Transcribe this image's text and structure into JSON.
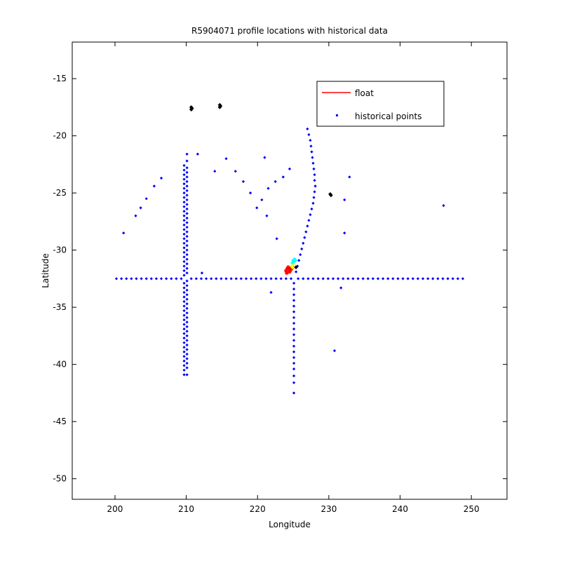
{
  "chart_data": {
    "type": "scatter",
    "title": "R5904071 profile locations with historical data",
    "xlabel": "Longitude",
    "ylabel": "Latitude",
    "xlim": [
      194,
      255
    ],
    "ylim": [
      -51.8,
      -11.8
    ],
    "xticks": [
      200,
      210,
      220,
      230,
      240,
      250
    ],
    "yticks": [
      -15,
      -20,
      -25,
      -30,
      -35,
      -40,
      -45,
      -50
    ],
    "grid": false,
    "legend": {
      "placement": "top-right",
      "entries": [
        {
          "label": "float",
          "color": "#ff0000",
          "marker": "line"
        },
        {
          "label": "historical points",
          "color": "#0000ff",
          "marker": "dot"
        }
      ]
    },
    "series": [
      {
        "name": "historical points",
        "color": "#0000ff",
        "points": [
          [
            200.2,
            -32.5
          ],
          [
            200.9,
            -32.5
          ],
          [
            201.6,
            -32.5
          ],
          [
            202.3,
            -32.5
          ],
          [
            203.0,
            -32.5
          ],
          [
            203.7,
            -32.5
          ],
          [
            204.4,
            -32.5
          ],
          [
            205.1,
            -32.5
          ],
          [
            205.8,
            -32.5
          ],
          [
            206.5,
            -32.5
          ],
          [
            207.2,
            -32.5
          ],
          [
            207.9,
            -32.5
          ],
          [
            208.6,
            -32.5
          ],
          [
            209.3,
            -32.5
          ],
          [
            210.7,
            -32.5
          ],
          [
            211.4,
            -32.5
          ],
          [
            212.1,
            -32.5
          ],
          [
            212.8,
            -32.5
          ],
          [
            213.5,
            -32.5
          ],
          [
            214.2,
            -32.5
          ],
          [
            214.9,
            -32.5
          ],
          [
            215.6,
            -32.5
          ],
          [
            216.3,
            -32.5
          ],
          [
            217.0,
            -32.5
          ],
          [
            217.7,
            -32.5
          ],
          [
            218.4,
            -32.5
          ],
          [
            219.1,
            -32.5
          ],
          [
            219.8,
            -32.5
          ],
          [
            220.5,
            -32.5
          ],
          [
            221.2,
            -32.5
          ],
          [
            221.9,
            -32.5
          ],
          [
            222.6,
            -32.5
          ],
          [
            223.3,
            -32.5
          ],
          [
            224.0,
            -32.5
          ],
          [
            224.7,
            -32.5
          ],
          [
            225.7,
            -32.5
          ],
          [
            226.4,
            -32.5
          ],
          [
            227.1,
            -32.5
          ],
          [
            227.8,
            -32.5
          ],
          [
            228.5,
            -32.5
          ],
          [
            229.2,
            -32.5
          ],
          [
            229.9,
            -32.5
          ],
          [
            230.6,
            -32.5
          ],
          [
            231.3,
            -32.5
          ],
          [
            232.0,
            -32.5
          ],
          [
            232.7,
            -32.5
          ],
          [
            233.4,
            -32.5
          ],
          [
            234.1,
            -32.5
          ],
          [
            234.8,
            -32.5
          ],
          [
            235.5,
            -32.5
          ],
          [
            236.2,
            -32.5
          ],
          [
            236.9,
            -32.5
          ],
          [
            237.6,
            -32.5
          ],
          [
            238.3,
            -32.5
          ],
          [
            239.0,
            -32.5
          ],
          [
            239.7,
            -32.5
          ],
          [
            240.4,
            -32.5
          ],
          [
            241.1,
            -32.5
          ],
          [
            241.8,
            -32.5
          ],
          [
            242.5,
            -32.5
          ],
          [
            243.2,
            -32.5
          ],
          [
            243.9,
            -32.5
          ],
          [
            244.6,
            -32.5
          ],
          [
            245.3,
            -32.5
          ],
          [
            246.0,
            -32.5
          ],
          [
            246.7,
            -32.5
          ],
          [
            247.4,
            -32.5
          ],
          [
            248.1,
            -32.5
          ],
          [
            248.8,
            -32.5
          ],
          [
            209.7,
            -22.6
          ],
          [
            209.7,
            -23.0
          ],
          [
            209.7,
            -23.4
          ],
          [
            209.7,
            -23.8
          ],
          [
            209.7,
            -24.2
          ],
          [
            209.7,
            -24.6
          ],
          [
            209.7,
            -25.0
          ],
          [
            209.7,
            -25.4
          ],
          [
            209.7,
            -25.8
          ],
          [
            209.7,
            -26.2
          ],
          [
            209.7,
            -26.6
          ],
          [
            209.7,
            -27.0
          ],
          [
            209.7,
            -27.4
          ],
          [
            209.7,
            -27.8
          ],
          [
            209.7,
            -28.2
          ],
          [
            209.7,
            -28.6
          ],
          [
            209.7,
            -29.0
          ],
          [
            209.7,
            -29.4
          ],
          [
            209.7,
            -29.8
          ],
          [
            209.7,
            -30.2
          ],
          [
            209.7,
            -30.6
          ],
          [
            209.7,
            -31.0
          ],
          [
            209.7,
            -31.4
          ],
          [
            209.7,
            -31.8
          ],
          [
            209.7,
            -32.2
          ],
          [
            209.7,
            -32.9
          ],
          [
            209.7,
            -33.3
          ],
          [
            209.7,
            -33.7
          ],
          [
            209.7,
            -34.1
          ],
          [
            209.7,
            -34.5
          ],
          [
            209.7,
            -34.9
          ],
          [
            209.7,
            -35.3
          ],
          [
            209.7,
            -35.7
          ],
          [
            209.7,
            -36.1
          ],
          [
            209.7,
            -36.5
          ],
          [
            209.7,
            -36.9
          ],
          [
            209.7,
            -37.3
          ],
          [
            209.7,
            -37.7
          ],
          [
            209.7,
            -38.1
          ],
          [
            209.7,
            -38.5
          ],
          [
            209.7,
            -38.9
          ],
          [
            209.7,
            -39.3
          ],
          [
            209.7,
            -39.7
          ],
          [
            209.7,
            -40.1
          ],
          [
            209.7,
            -40.5
          ],
          [
            209.7,
            -40.9
          ],
          [
            210.1,
            -21.6
          ],
          [
            210.1,
            -22.2
          ],
          [
            210.1,
            -22.8
          ],
          [
            210.1,
            -23.2
          ],
          [
            210.1,
            -23.6
          ],
          [
            210.1,
            -24.0
          ],
          [
            210.1,
            -24.4
          ],
          [
            210.1,
            -24.8
          ],
          [
            210.1,
            -25.2
          ],
          [
            210.1,
            -25.6
          ],
          [
            210.1,
            -26.0
          ],
          [
            210.1,
            -26.4
          ],
          [
            210.1,
            -26.8
          ],
          [
            210.1,
            -27.2
          ],
          [
            210.1,
            -27.6
          ],
          [
            210.1,
            -28.0
          ],
          [
            210.1,
            -28.4
          ],
          [
            210.1,
            -28.8
          ],
          [
            210.1,
            -29.2
          ],
          [
            210.1,
            -29.6
          ],
          [
            210.1,
            -30.0
          ],
          [
            210.1,
            -30.4
          ],
          [
            210.1,
            -30.8
          ],
          [
            210.1,
            -31.2
          ],
          [
            210.1,
            -31.6
          ],
          [
            210.1,
            -32.0
          ],
          [
            210.1,
            -32.7
          ],
          [
            210.1,
            -33.1
          ],
          [
            210.1,
            -33.5
          ],
          [
            210.1,
            -33.9
          ],
          [
            210.1,
            -34.3
          ],
          [
            210.1,
            -34.7
          ],
          [
            210.1,
            -35.1
          ],
          [
            210.1,
            -35.5
          ],
          [
            210.1,
            -35.9
          ],
          [
            210.1,
            -36.3
          ],
          [
            210.1,
            -36.7
          ],
          [
            210.1,
            -37.1
          ],
          [
            210.1,
            -37.5
          ],
          [
            210.1,
            -37.9
          ],
          [
            210.1,
            -38.3
          ],
          [
            210.1,
            -38.7
          ],
          [
            210.1,
            -39.1
          ],
          [
            210.1,
            -39.5
          ],
          [
            210.1,
            -39.9
          ],
          [
            210.1,
            -40.3
          ],
          [
            210.1,
            -40.9
          ],
          [
            225.1,
            -32.9
          ],
          [
            225.1,
            -33.4
          ],
          [
            225.1,
            -33.9
          ],
          [
            225.1,
            -34.4
          ],
          [
            225.1,
            -34.9
          ],
          [
            225.1,
            -35.4
          ],
          [
            225.1,
            -35.9
          ],
          [
            225.1,
            -36.4
          ],
          [
            225.1,
            -36.9
          ],
          [
            225.1,
            -37.4
          ],
          [
            225.1,
            -37.9
          ],
          [
            225.1,
            -38.4
          ],
          [
            225.1,
            -38.9
          ],
          [
            225.1,
            -39.4
          ],
          [
            225.1,
            -39.9
          ],
          [
            225.1,
            -40.4
          ],
          [
            225.1,
            -41.0
          ],
          [
            225.1,
            -41.6
          ],
          [
            225.1,
            -42.5
          ],
          [
            227.0,
            -19.4
          ],
          [
            227.2,
            -19.9
          ],
          [
            227.4,
            -20.4
          ],
          [
            227.5,
            -20.9
          ],
          [
            227.6,
            -21.4
          ],
          [
            227.7,
            -21.9
          ],
          [
            227.8,
            -22.4
          ],
          [
            227.9,
            -22.9
          ],
          [
            228.0,
            -23.4
          ],
          [
            228.0,
            -23.9
          ],
          [
            228.1,
            -24.4
          ],
          [
            228.0,
            -24.9
          ],
          [
            227.9,
            -25.4
          ],
          [
            227.8,
            -25.9
          ],
          [
            227.6,
            -26.4
          ],
          [
            227.4,
            -26.9
          ],
          [
            227.2,
            -27.4
          ],
          [
            227.0,
            -27.9
          ],
          [
            226.8,
            -28.4
          ],
          [
            226.6,
            -28.9
          ],
          [
            226.4,
            -29.4
          ],
          [
            226.2,
            -29.9
          ],
          [
            226.0,
            -30.4
          ],
          [
            225.8,
            -30.9
          ],
          [
            225.6,
            -31.4
          ],
          [
            225.4,
            -31.9
          ],
          [
            201.2,
            -28.5
          ],
          [
            202.9,
            -27.0
          ],
          [
            203.6,
            -26.3
          ],
          [
            204.4,
            -25.5
          ],
          [
            205.5,
            -24.4
          ],
          [
            206.5,
            -23.7
          ],
          [
            211.6,
            -21.6
          ],
          [
            214.0,
            -23.1
          ],
          [
            215.6,
            -22.0
          ],
          [
            216.9,
            -23.1
          ],
          [
            218.0,
            -24.0
          ],
          [
            219.0,
            -25.0
          ],
          [
            219.9,
            -26.3
          ],
          [
            220.6,
            -25.6
          ],
          [
            221.5,
            -24.6
          ],
          [
            222.5,
            -24.0
          ],
          [
            223.6,
            -23.6
          ],
          [
            224.5,
            -22.9
          ],
          [
            221.0,
            -21.9
          ],
          [
            221.3,
            -27.0
          ],
          [
            222.7,
            -29.0
          ],
          [
            221.9,
            -33.7
          ],
          [
            212.2,
            -32.0
          ],
          [
            232.2,
            -28.5
          ],
          [
            232.2,
            -25.6
          ],
          [
            232.9,
            -23.6
          ],
          [
            231.7,
            -33.3
          ],
          [
            230.8,
            -38.8
          ],
          [
            246.1,
            -26.1
          ]
        ]
      },
      {
        "name": "",
        "color": "#000000",
        "points": [
          [
            210.7,
            -17.5
          ],
          [
            210.8,
            -17.6
          ],
          [
            210.7,
            -17.7
          ],
          [
            214.7,
            -17.3
          ],
          [
            214.8,
            -17.4
          ],
          [
            214.7,
            -17.5
          ],
          [
            230.2,
            -25.1
          ],
          [
            230.3,
            -25.2
          ],
          [
            224.6,
            -31.6
          ],
          [
            225.4,
            -31.5
          ]
        ]
      },
      {
        "name": "float",
        "color": "#ff0000",
        "points": [
          [
            224.0,
            -31.8
          ],
          [
            224.2,
            -31.6
          ],
          [
            224.4,
            -31.7
          ],
          [
            224.5,
            -31.9
          ],
          [
            224.7,
            -31.7
          ],
          [
            224.9,
            -31.5
          ],
          [
            224.3,
            -31.5
          ],
          [
            224.1,
            -32.0
          ]
        ]
      },
      {
        "name": "",
        "color": "#ffff00",
        "points": [
          [
            224.8,
            -31.4
          ],
          [
            225.0,
            -31.2
          ],
          [
            224.9,
            -31.5
          ]
        ]
      },
      {
        "name": "",
        "color": "#00ffff",
        "points": [
          [
            225.0,
            -30.9
          ],
          [
            225.2,
            -30.8
          ],
          [
            225.1,
            -31.0
          ],
          [
            225.3,
            -30.9
          ],
          [
            224.9,
            -31.1
          ]
        ]
      }
    ]
  }
}
